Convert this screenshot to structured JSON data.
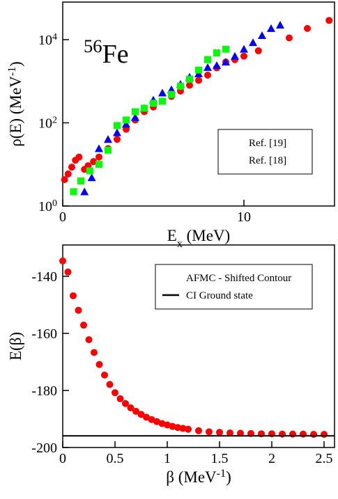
{
  "chart_data": [
    {
      "type": "scatter",
      "annotation": "^{56}Fe",
      "xlabel": "E_{x} (MeV)",
      "ylabel": "ρ(E) (MeV^{-1})",
      "xlim": [
        0,
        15
      ],
      "xticks": [
        0,
        10
      ],
      "ylim": [
        1,
        80000
      ],
      "log_y": true,
      "yticks": [
        {
          "value": 1,
          "label": "10^{0}"
        },
        {
          "value": 100,
          "label": "10^{2}"
        },
        {
          "value": 10000,
          "label": "10^{4}"
        }
      ],
      "legend": "lower right",
      "series": [
        {
          "color": "#ff0000",
          "marker": "circle",
          "x": [
            0.1,
            0.3,
            0.5,
            0.7,
            0.9,
            1.2,
            1.4,
            1.7,
            2.0,
            2.5,
            3,
            3.5,
            4,
            4.5,
            5,
            5.5,
            6,
            6.5,
            7,
            7.5,
            8,
            8.5,
            9,
            9.5,
            10,
            10.8,
            12.5,
            13.5,
            14.7
          ],
          "values": [
            4.3,
            5.9,
            8.6,
            12.6,
            15,
            7.6,
            9.3,
            11.7,
            15,
            24,
            40,
            70,
            117,
            185,
            240,
            330,
            430,
            580,
            800,
            1050,
            1400,
            2100,
            2900,
            3300,
            4000,
            5400,
            11000,
            18600,
            29000
          ]
        },
        {
          "name": "Ref. [19]",
          "color": "#0000ff",
          "marker": "triangle",
          "x": [
            1.2,
            1.6,
            2,
            2.5,
            3,
            3.5,
            4,
            4.5,
            5,
            5.5,
            6,
            6.5,
            7,
            7.5,
            8,
            8.5,
            9,
            9.5,
            10,
            10.5,
            11,
            11.5,
            12
          ],
          "values": [
            2.2,
            4.8,
            24,
            40,
            58,
            93,
            135,
            224,
            355,
            525,
            630,
            850,
            1260,
            1510,
            2150,
            2400,
            2900,
            4000,
            5900,
            8500,
            12600,
            18600,
            22400
          ]
        },
        {
          "name": "Ref. [18]",
          "color": "#00ff00",
          "marker": "square",
          "x": [
            0.6,
            1,
            1.5,
            2,
            2.5,
            3,
            3.5,
            4,
            4.5,
            5,
            5.5,
            6,
            6.5,
            7,
            7.5,
            8,
            8.5,
            9
          ],
          "values": [
            2.2,
            4,
            7,
            10,
            22,
            86,
            117,
            185,
            224,
            295,
            330,
            480,
            760,
            1120,
            1860,
            3300,
            4800,
            5900
          ]
        }
      ]
    },
    {
      "type": "scatter",
      "xlabel": "β (MeV^{-1})",
      "ylabel": "E(β)",
      "xlim": [
        0,
        2.6
      ],
      "xticks": [
        0,
        0.5,
        1,
        1.5,
        2,
        2.5
      ],
      "ylim": [
        -200,
        -129
      ],
      "yticks": [
        -200,
        -180,
        -160,
        -140
      ],
      "legend": "upper right",
      "series": [
        {
          "name": "AFMC - Shifted Contour",
          "color": "#ff0000",
          "marker": "circle",
          "x": [
            0,
            0.05,
            0.1,
            0.15,
            0.2,
            0.25,
            0.3,
            0.35,
            0.4,
            0.45,
            0.5,
            0.55,
            0.6,
            0.65,
            0.7,
            0.75,
            0.8,
            0.85,
            0.9,
            0.95,
            1.0,
            1.05,
            1.1,
            1.15,
            1.2,
            1.3,
            1.4,
            1.5,
            1.6,
            1.7,
            1.8,
            1.9,
            2.0,
            2.1,
            2.2,
            2.3,
            2.4,
            2.5
          ],
          "values": [
            -134.6,
            -138.5,
            -146.8,
            -151.9,
            -157.1,
            -162.2,
            -166.7,
            -170.9,
            -174.6,
            -177.9,
            -180.8,
            -182.9,
            -184.6,
            -186.1,
            -187.3,
            -188.4,
            -189.4,
            -190.2,
            -190.9,
            -191.6,
            -192.1,
            -192.6,
            -193.0,
            -193.3,
            -193.6,
            -194.1,
            -194.5,
            -194.7,
            -194.9,
            -195.0,
            -195.1,
            -195.2,
            -195.2,
            -195.3,
            -195.3,
            -195.3,
            -195.4,
            -195.4
          ]
        },
        {
          "name": "CI Ground state",
          "color": "#000000",
          "marker": "hline",
          "y": -195.9
        }
      ]
    }
  ]
}
